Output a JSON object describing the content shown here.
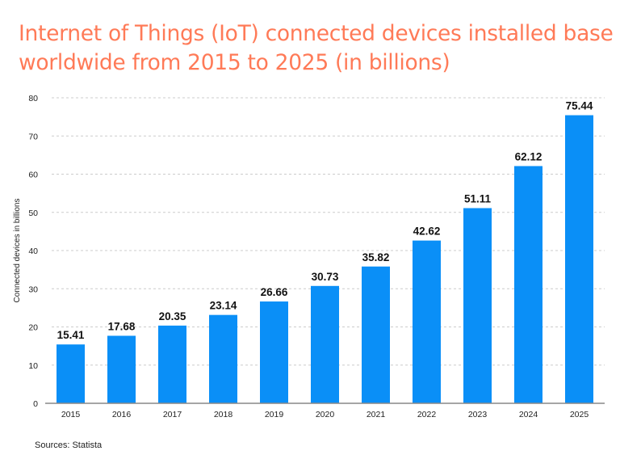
{
  "chart_data": {
    "type": "bar",
    "title": "Internet of Things (IoT) connected devices installed base worldwide from 2015 to 2025 (in billions)",
    "xlabel": "",
    "ylabel": "Connected devices in billions",
    "categories": [
      "2015",
      "2016",
      "2017",
      "2018",
      "2019",
      "2020",
      "2021",
      "2022",
      "2023",
      "2024",
      "2025"
    ],
    "values": [
      15.41,
      17.68,
      20.35,
      23.14,
      26.66,
      30.73,
      35.82,
      42.62,
      51.11,
      62.12,
      75.44
    ],
    "value_labels": [
      "15.41",
      "17.68",
      "20.35",
      "23.14",
      "26.66",
      "30.73",
      "35.82",
      "42.62",
      "51.11",
      "62.12",
      "75.44"
    ],
    "ylim": [
      0,
      80
    ],
    "yticks": [
      0,
      10,
      20,
      30,
      40,
      50,
      60,
      70,
      80
    ],
    "ytick_labels": [
      "0",
      "10",
      "20",
      "30",
      "40",
      "50",
      "60",
      "70",
      "80"
    ],
    "grid": "horizontal dashed",
    "legend": "none",
    "colors": {
      "bar": "#0A8FF7",
      "title": "#FF7A57",
      "grid": "#cccccc",
      "axis": "#888888"
    }
  },
  "source": "Sources: Statista"
}
